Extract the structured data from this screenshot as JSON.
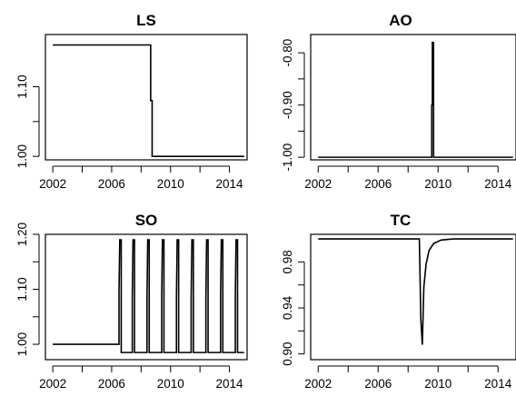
{
  "chart_data": [
    {
      "type": "line",
      "title": "LS",
      "xlim": [
        2001.5,
        2015.2
      ],
      "ylim": [
        0.995,
        1.175
      ],
      "x_ticks": [
        2002,
        2006,
        2010,
        2014
      ],
      "y_ticks": [
        1.0,
        1.1
      ],
      "y_tick_labels": [
        "1.00",
        "1.10"
      ],
      "series": [
        {
          "points": [
            [
              2002.0,
              1.16
            ],
            [
              2008.65,
              1.16
            ],
            [
              2008.65,
              1.08
            ],
            [
              2008.75,
              1.08
            ],
            [
              2008.75,
              1.0
            ],
            [
              2015.0,
              1.0
            ]
          ]
        }
      ]
    },
    {
      "type": "line",
      "title": "AO",
      "xlim": [
        2001.5,
        2015.2
      ],
      "ylim": [
        -1.005,
        -0.765
      ],
      "x_ticks": [
        2002,
        2006,
        2010,
        2014
      ],
      "y_ticks": [
        -1.0,
        -0.9,
        -0.8
      ],
      "y_tick_labels": [
        "-1.00",
        "-0.90",
        "-0.80"
      ],
      "series": [
        {
          "points": [
            [
              2002.0,
              -1.0
            ],
            [
              2009.58,
              -1.0
            ],
            [
              2009.58,
              -0.9
            ],
            [
              2009.62,
              -0.9
            ],
            [
              2009.62,
              -0.78
            ],
            [
              2009.7,
              -0.78
            ],
            [
              2009.7,
              -1.0
            ],
            [
              2015.0,
              -1.0
            ]
          ]
        }
      ]
    },
    {
      "type": "line",
      "title": "SO",
      "xlim": [
        2001.5,
        2015.2
      ],
      "ylim": [
        0.972,
        1.2
      ],
      "x_ticks": [
        2002,
        2006,
        2010,
        2014
      ],
      "y_ticks": [
        1.0,
        1.1,
        1.2
      ],
      "y_tick_labels": [
        "1.00",
        "1.10",
        "1.20"
      ],
      "series": [
        {
          "points": [
            [
              2002.0,
              1.0
            ],
            [
              2006.5,
              1.0
            ],
            [
              2006.5,
              1.095
            ],
            [
              2006.55,
              1.19
            ],
            [
              2006.65,
              1.19
            ],
            [
              2006.65,
              0.985
            ],
            [
              2007.4,
              0.985
            ],
            [
              2007.4,
              1.085
            ],
            [
              2007.45,
              1.19
            ],
            [
              2007.55,
              1.19
            ],
            [
              2007.55,
              0.985
            ],
            [
              2008.4,
              0.985
            ],
            [
              2008.4,
              1.085
            ],
            [
              2008.45,
              1.19
            ],
            [
              2008.55,
              1.19
            ],
            [
              2008.55,
              0.985
            ],
            [
              2009.4,
              0.985
            ],
            [
              2009.4,
              1.085
            ],
            [
              2009.45,
              1.19
            ],
            [
              2009.55,
              1.19
            ],
            [
              2009.55,
              0.985
            ],
            [
              2010.4,
              0.985
            ],
            [
              2010.4,
              1.085
            ],
            [
              2010.45,
              1.19
            ],
            [
              2010.55,
              1.19
            ],
            [
              2010.55,
              0.985
            ],
            [
              2011.4,
              0.985
            ],
            [
              2011.4,
              1.085
            ],
            [
              2011.45,
              1.19
            ],
            [
              2011.55,
              1.19
            ],
            [
              2011.55,
              0.985
            ],
            [
              2012.4,
              0.985
            ],
            [
              2012.4,
              1.085
            ],
            [
              2012.45,
              1.19
            ],
            [
              2012.55,
              1.19
            ],
            [
              2012.55,
              0.985
            ],
            [
              2013.4,
              0.985
            ],
            [
              2013.4,
              1.085
            ],
            [
              2013.45,
              1.19
            ],
            [
              2013.55,
              1.19
            ],
            [
              2013.55,
              0.985
            ],
            [
              2014.4,
              0.985
            ],
            [
              2014.4,
              1.085
            ],
            [
              2014.45,
              1.19
            ],
            [
              2014.55,
              1.19
            ],
            [
              2014.55,
              0.985
            ],
            [
              2015.0,
              0.985
            ]
          ]
        }
      ]
    },
    {
      "type": "line",
      "title": "TC",
      "xlim": [
        2001.5,
        2015.2
      ],
      "ylim": [
        0.895,
        1.004
      ],
      "x_ticks": [
        2002,
        2006,
        2010,
        2014
      ],
      "y_ticks": [
        0.9,
        0.94,
        0.98
      ],
      "y_tick_labels": [
        "0.90",
        "0.94",
        "0.98"
      ],
      "series": [
        {
          "points": [
            [
              2002.0,
              1.0
            ],
            [
              2008.75,
              1.0
            ],
            [
              2008.85,
              0.93
            ],
            [
              2008.95,
              0.908
            ],
            [
              2009.05,
              0.958
            ],
            [
              2009.2,
              0.978
            ],
            [
              2009.4,
              0.99
            ],
            [
              2009.7,
              0.996
            ],
            [
              2010.2,
              0.999
            ],
            [
              2011.0,
              1.0
            ],
            [
              2015.0,
              1.0
            ]
          ]
        }
      ]
    }
  ]
}
